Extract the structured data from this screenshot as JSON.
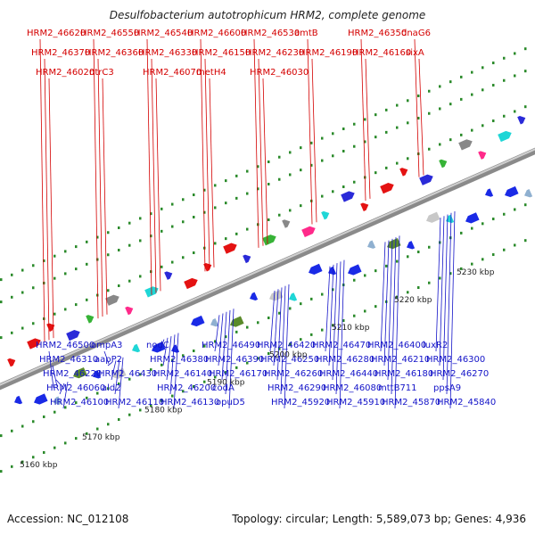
{
  "title": "Desulfobacterium autotrophicum HRM2, complete genome",
  "accession": "Accession: NC_012108",
  "summary": "Topology: circular; Length: 5,589,073 bp; Genes: 4,936",
  "colors": {
    "forward_label": "#d40000",
    "reverse_label": "#1414c8",
    "backbone": "#8a8a8a",
    "tick": "#2a8a2a"
  },
  "kbp_ticks": [
    "5160 kbp",
    "5170 kbp",
    "5180 kbp",
    "5190 kbp",
    "5200 kbp",
    "5210 kbp",
    "5220 kbp",
    "5230 kbp"
  ],
  "forward_labels": [
    "HRM2_46620",
    "HRM2_46550",
    "HRM2_46540",
    "HRM2_46600",
    "HRM2_46530",
    "amtB",
    "HRM2_46350",
    "dnaG6",
    "HRM2_46370",
    "HRM2_46360",
    "HRM2_46330",
    "HRM2_46150",
    "HRM2_46230",
    "HRM2_46190",
    "HRM2_46160",
    "sixA",
    "HRM2_46020",
    "ntrC3",
    "HRM2_46070",
    "metH4",
    "HRM2_46030"
  ],
  "reverse_labels": [
    "HRM2_46500",
    "ompA3",
    "nodC",
    "HRM2_46490",
    "HRM2_46420",
    "HRM2_46470",
    "HRM2_46400",
    "luxR2",
    "HRM2_46310",
    "aapP2",
    "HRM2_46380",
    "HRM2_46390",
    "HRM2_46250",
    "HRM2_46280",
    "HRM2_46210",
    "HRM2_46300",
    "HRM2_46220",
    "HRM2_46430",
    "HRM2_46140",
    "HRM2_46170",
    "HRM2_46260",
    "HRM2_46440",
    "HRM2_46180",
    "HRM2_46270",
    "HRM2_46060",
    "ald2",
    "HRM2_46200",
    "codA",
    "HRM2_46290",
    "HRM2_46080",
    "mttB711",
    "ppsA9",
    "HRM2_46100",
    "HRM2_46110",
    "HRM2_46130",
    "opuD5",
    "HRM2_45920",
    "HRM2_45910",
    "HRM2_45870",
    "HRM2_45840"
  ]
}
